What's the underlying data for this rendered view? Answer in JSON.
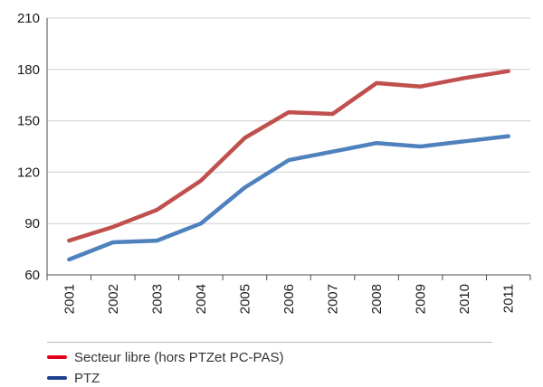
{
  "chart_data": {
    "type": "line",
    "title": "",
    "xlabel": "",
    "ylabel": "",
    "x": [
      "2001",
      "2002",
      "2003",
      "2004",
      "2005",
      "2006",
      "2007",
      "2008",
      "2009",
      "2010",
      "2011"
    ],
    "ylim": [
      60,
      210
    ],
    "yticks": [
      60,
      90,
      120,
      150,
      180,
      210
    ],
    "grid": "horizontal",
    "legend_position": "bottom-left",
    "series": [
      {
        "name": "Secteur libre (hors PTZet PC-PAS)",
        "color": "#c0504d",
        "values": [
          80,
          88,
          98,
          115,
          140,
          155,
          154,
          172,
          170,
          175,
          179
        ]
      },
      {
        "name": "PTZ",
        "color": "#4f81bd",
        "values": [
          69,
          79,
          80,
          90,
          111,
          127,
          132,
          137,
          135,
          138,
          141
        ]
      }
    ]
  },
  "legend": {
    "items": [
      {
        "label": "Secteur libre (hors PTZet PC-PAS)",
        "swatch_color": "#e4001b"
      },
      {
        "label": "PTZ",
        "swatch_color": "#1f3f8f"
      }
    ]
  }
}
